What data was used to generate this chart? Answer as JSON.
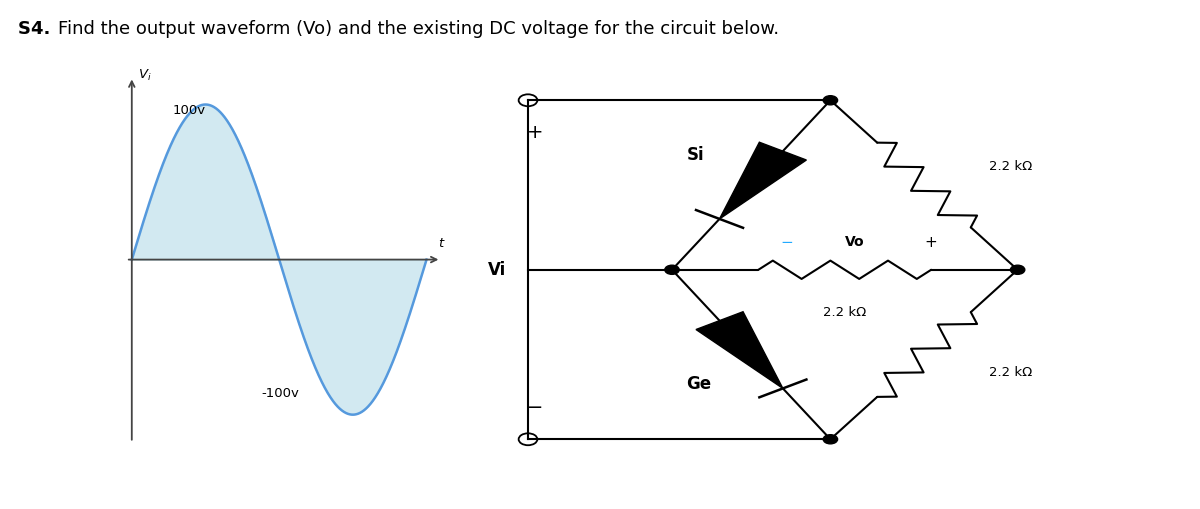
{
  "title": "S4. Find the output waveform (Vo) and the existing DC voltage for the circuit below.",
  "title_fontsize": 13,
  "title_fontweight": "normal",
  "bg_color": "#ffffff",
  "waveform": {
    "label_pos": "100v",
    "label_neg": "-100v",
    "label_t": "t",
    "fill_color": "#add8e6",
    "fill_alpha": 0.55,
    "line_color": "#5599dd",
    "line_width": 1.8
  },
  "circuit": {
    "resistor_label_top": "2.2 kΩ",
    "resistor_label_mid": "2.2 kΩ",
    "resistor_label_bot": "2.2 kΩ",
    "label_Si": "Si",
    "label_Ge": "Ge",
    "label_Vo": "Vo",
    "label_Vi": "Vi"
  }
}
